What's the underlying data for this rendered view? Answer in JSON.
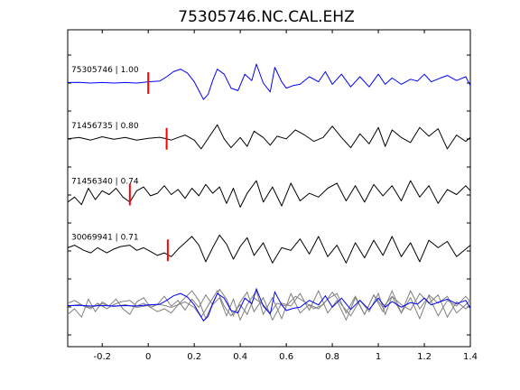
{
  "chart_data": {
    "type": "line",
    "title": "75305746.NC.CAL.EHZ",
    "xlabel": "",
    "ylabel": "",
    "xlim": [
      -0.35,
      1.4
    ],
    "xticks": [
      -0.2,
      0,
      0.2,
      0.4,
      0.6,
      0.8,
      1,
      1.2,
      1.4
    ],
    "xtick_labels": [
      "-0.2",
      "0",
      "0.2",
      "0.4",
      "0.6",
      "0.8",
      "1",
      "1.2",
      "1.4"
    ],
    "grid": false,
    "colors": {
      "reference": "#0000ff",
      "other": "#000000",
      "pick": "#ff0000",
      "stack_other": "#808080"
    },
    "traces": [
      {
        "label": "75305746 | 1.00",
        "id": "75305746",
        "correlation": 1.0,
        "pick_time": 0.0,
        "color": "#0000ff",
        "t": [
          -0.35,
          -0.3,
          -0.25,
          -0.2,
          -0.15,
          -0.1,
          -0.05,
          0,
          0.05,
          0.08,
          0.11,
          0.14,
          0.17,
          0.2,
          0.22,
          0.24,
          0.26,
          0.28,
          0.3,
          0.33,
          0.36,
          0.39,
          0.42,
          0.45,
          0.47,
          0.5,
          0.53,
          0.55,
          0.58,
          0.6,
          0.63,
          0.66,
          0.7,
          0.74,
          0.77,
          0.8,
          0.84,
          0.88,
          0.92,
          0.96,
          1.0,
          1.03,
          1.06,
          1.1,
          1.14,
          1.17,
          1.2,
          1.23,
          1.27,
          1.3,
          1.34,
          1.38,
          1.4
        ],
        "y": [
          0.02,
          0.03,
          0.0,
          0.02,
          0.0,
          0.02,
          0.0,
          0.05,
          0.08,
          0.25,
          0.45,
          0.55,
          0.4,
          0.05,
          -0.3,
          -0.65,
          -0.45,
          0.1,
          0.55,
          0.35,
          -0.2,
          -0.3,
          0.35,
          0.1,
          0.75,
          0.0,
          -0.35,
          0.62,
          0.05,
          -0.2,
          -0.1,
          -0.05,
          0.25,
          0.05,
          0.45,
          -0.05,
          0.35,
          -0.15,
          0.25,
          -0.15,
          0.35,
          -0.05,
          0.2,
          -0.05,
          0.15,
          0.08,
          0.35,
          0.05,
          0.2,
          0.3,
          0.1,
          0.25,
          -0.1
        ]
      },
      {
        "label": "71456735 | 0.80",
        "id": "71456735",
        "correlation": 0.8,
        "pick_time": 0.08,
        "color": "#000000",
        "t": [
          -0.35,
          -0.3,
          -0.25,
          -0.2,
          -0.15,
          -0.1,
          -0.05,
          0,
          0.05,
          0.08,
          0.1,
          0.13,
          0.16,
          0.2,
          0.23,
          0.27,
          0.3,
          0.33,
          0.36,
          0.4,
          0.43,
          0.46,
          0.5,
          0.53,
          0.56,
          0.6,
          0.64,
          0.68,
          0.72,
          0.76,
          0.8,
          0.84,
          0.88,
          0.92,
          0.96,
          1.0,
          1.03,
          1.06,
          1.1,
          1.14,
          1.18,
          1.22,
          1.26,
          1.3,
          1.34,
          1.38,
          1.4
        ],
        "y": [
          0.0,
          0.05,
          -0.05,
          0.08,
          -0.02,
          0.05,
          -0.05,
          0.02,
          0.06,
          0.0,
          -0.05,
          0.05,
          0.15,
          -0.05,
          -0.4,
          0.15,
          0.55,
          0.0,
          -0.35,
          0.05,
          -0.3,
          0.3,
          0.05,
          -0.25,
          0.1,
          0.0,
          0.35,
          0.15,
          -0.1,
          0.05,
          0.5,
          0.05,
          -0.35,
          0.2,
          -0.2,
          0.45,
          -0.3,
          0.35,
          0.05,
          -0.15,
          0.45,
          0.1,
          0.4,
          -0.4,
          0.15,
          -0.1,
          0.05
        ]
      },
      {
        "label": "71456340 | 0.74",
        "id": "71456340",
        "correlation": 0.74,
        "pick_time": -0.08,
        "color": "#000000",
        "t": [
          -0.35,
          -0.32,
          -0.29,
          -0.26,
          -0.23,
          -0.2,
          -0.17,
          -0.14,
          -0.11,
          -0.08,
          -0.05,
          -0.02,
          0.01,
          0.04,
          0.07,
          0.1,
          0.13,
          0.16,
          0.19,
          0.22,
          0.25,
          0.28,
          0.31,
          0.34,
          0.37,
          0.4,
          0.43,
          0.47,
          0.5,
          0.54,
          0.58,
          0.62,
          0.66,
          0.7,
          0.74,
          0.78,
          0.82,
          0.86,
          0.9,
          0.94,
          0.98,
          1.02,
          1.06,
          1.1,
          1.14,
          1.18,
          1.22,
          1.26,
          1.3,
          1.34,
          1.38,
          1.4
        ],
        "y": [
          -0.3,
          -0.1,
          -0.4,
          0.25,
          -0.2,
          0.15,
          0.0,
          0.25,
          -0.1,
          -0.3,
          0.15,
          0.3,
          -0.05,
          0.05,
          0.35,
          0.0,
          0.2,
          -0.15,
          0.25,
          -0.05,
          0.4,
          0.05,
          0.3,
          -0.35,
          0.25,
          -0.5,
          0.05,
          0.55,
          -0.3,
          0.3,
          -0.45,
          0.45,
          -0.25,
          0.05,
          -0.1,
          0.25,
          0.45,
          -0.25,
          0.35,
          -0.3,
          0.4,
          -0.05,
          0.35,
          -0.25,
          0.55,
          -0.1,
          0.35,
          -0.35,
          0.2,
          0.0,
          0.35,
          0.15
        ]
      },
      {
        "label": "30069941 | 0.71",
        "id": "30069941",
        "correlation": 0.71,
        "pick_time": 0.085,
        "color": "#000000",
        "t": [
          -0.35,
          -0.32,
          -0.28,
          -0.25,
          -0.22,
          -0.18,
          -0.15,
          -0.12,
          -0.08,
          -0.05,
          -0.02,
          0.01,
          0.04,
          0.07,
          0.1,
          0.13,
          0.16,
          0.19,
          0.22,
          0.25,
          0.28,
          0.31,
          0.34,
          0.37,
          0.4,
          0.43,
          0.46,
          0.5,
          0.54,
          0.58,
          0.62,
          0.66,
          0.7,
          0.74,
          0.78,
          0.82,
          0.86,
          0.9,
          0.94,
          0.98,
          1.02,
          1.06,
          1.1,
          1.14,
          1.18,
          1.22,
          1.26,
          1.3,
          1.34,
          1.38,
          1.4
        ],
        "y": [
          0.1,
          0.2,
          0.0,
          -0.1,
          0.1,
          -0.1,
          0.05,
          0.15,
          0.2,
          0.0,
          0.1,
          -0.05,
          -0.2,
          -0.1,
          -0.25,
          0.05,
          0.3,
          0.55,
          0.2,
          -0.45,
          0.1,
          0.6,
          0.25,
          -0.35,
          0.15,
          0.5,
          -0.2,
          0.3,
          -0.5,
          0.1,
          0.0,
          0.45,
          -0.15,
          0.55,
          -0.25,
          0.2,
          -0.5,
          0.3,
          -0.3,
          0.4,
          -0.2,
          0.55,
          -0.25,
          0.3,
          -0.45,
          0.4,
          0.1,
          0.35,
          -0.25,
          0.05,
          0.2
        ]
      }
    ],
    "stack_note": ""
  }
}
